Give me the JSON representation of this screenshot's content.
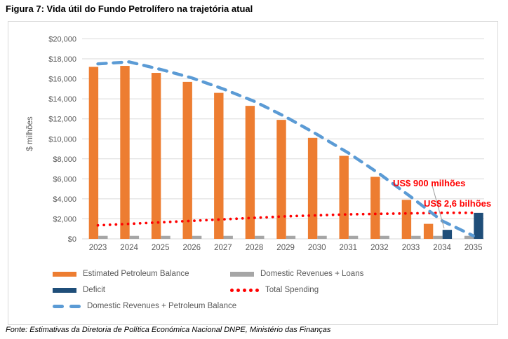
{
  "figure": {
    "title": "Figura 7: Vida útil do Fundo Petrolífero na trajetória atual",
    "source_note": "Fonte: Estimativas da Diretoria de Política Económica Nacional DNPE, Ministério das Finanças"
  },
  "chart_data": {
    "type": "bar",
    "title": "Figura 7: Vida útil do Fundo Petrolífero na trajetória atual",
    "xlabel": "",
    "ylabel": "$ milhões",
    "ylim": [
      0,
      20000
    ],
    "ytick_step": 2000,
    "ytick_labels": [
      "$0",
      "$2,000",
      "$4,000",
      "$6,000",
      "$8,000",
      "$10,000",
      "$12,000",
      "$14,000",
      "$16,000",
      "$18,000",
      "$20,000"
    ],
    "grid": true,
    "legend_position": "bottom",
    "categories": [
      "2023",
      "2024",
      "2025",
      "2026",
      "2027",
      "2028",
      "2029",
      "2030",
      "2031",
      "2032",
      "2033",
      "2034",
      "2035"
    ],
    "series": [
      {
        "name": "Estimated Petroleum Balance",
        "type": "bar",
        "color": "#ED7D31",
        "values": [
          17200,
          17300,
          16600,
          15700,
          14600,
          13300,
          11900,
          10100,
          8300,
          6200,
          3900,
          1500,
          0
        ]
      },
      {
        "name": "Domestic Revenues + Loans",
        "type": "bar",
        "color": "#A6A6A6",
        "values": [
          300,
          300,
          300,
          300,
          300,
          300,
          300,
          300,
          300,
          300,
          300,
          300,
          300
        ]
      },
      {
        "name": "Deficit",
        "type": "bar",
        "color": "#1F4E79",
        "values": [
          0,
          0,
          0,
          0,
          0,
          0,
          0,
          0,
          0,
          0,
          0,
          900,
          2600
        ]
      },
      {
        "name": "Total Spending",
        "type": "dotted-line",
        "color": "#FF0000",
        "values": [
          1350,
          1500,
          1650,
          1800,
          1950,
          2100,
          2250,
          2350,
          2450,
          2500,
          2550,
          2600,
          2600
        ]
      },
      {
        "name": "Domestic Revenues + Petroleum Balance",
        "type": "dashed-line",
        "color": "#5B9BD5",
        "values": [
          17500,
          17700,
          16950,
          16100,
          15000,
          13750,
          12200,
          10450,
          8600,
          6500,
          4200,
          1800,
          300
        ]
      }
    ],
    "annotations": [
      {
        "text": "US$ 900 milhões",
        "color": "#FF0000",
        "points_to": "Deficit bar 2034"
      },
      {
        "text": "US$ 2,6 bilhões",
        "color": "#FF0000",
        "points_to": "Total Spending end value 2035"
      }
    ],
    "gridline_color": "#DADADA",
    "axis_text_color": "#595959"
  }
}
